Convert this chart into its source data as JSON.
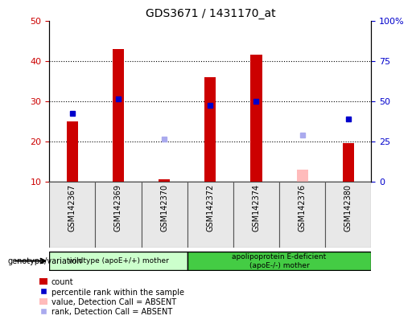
{
  "title": "GDS3671 / 1431170_at",
  "samples": [
    "GSM142367",
    "GSM142369",
    "GSM142370",
    "GSM142372",
    "GSM142374",
    "GSM142376",
    "GSM142380"
  ],
  "count_values": [
    25,
    43,
    10.5,
    36,
    41.5,
    null,
    19.5
  ],
  "count_absent_values": [
    null,
    null,
    null,
    null,
    null,
    13,
    null
  ],
  "rank_values": [
    27,
    30.5,
    null,
    29,
    30,
    null,
    25.5
  ],
  "rank_absent_values": [
    null,
    null,
    20.5,
    null,
    null,
    21.5,
    null
  ],
  "bar_color": "#cc0000",
  "bar_absent_color": "#ffbbbb",
  "rank_color": "#0000cc",
  "rank_absent_color": "#aaaaee",
  "left_ylim": [
    10,
    50
  ],
  "right_ylim": [
    0,
    100
  ],
  "left_yticks": [
    10,
    20,
    30,
    40,
    50
  ],
  "right_yticks": [
    0,
    25,
    50,
    75,
    100
  ],
  "right_yticklabels": [
    "0",
    "25",
    "50",
    "75",
    "100%"
  ],
  "grid_values": [
    20,
    30,
    40
  ],
  "group1_label": "wildtype (apoE+/+) mother",
  "group2_label": "apolipoprotein E-deficient\n(apoE-/-) mother",
  "group1_indices": [
    0,
    1,
    2
  ],
  "group2_indices": [
    3,
    4,
    5,
    6
  ],
  "group1_color": "#ccffcc",
  "group2_color": "#44cc44",
  "bar_width": 0.25,
  "marker_size": 5,
  "legend_labels": [
    "count",
    "percentile rank within the sample",
    "value, Detection Call = ABSENT",
    "rank, Detection Call = ABSENT"
  ],
  "legend_colors": [
    "#cc0000",
    "#0000cc",
    "#ffbbbb",
    "#aaaaee"
  ],
  "left_tick_color": "#cc0000",
  "right_tick_color": "#0000cc",
  "bg_color": "#e8e8e8",
  "plot_bg": "#ffffff"
}
